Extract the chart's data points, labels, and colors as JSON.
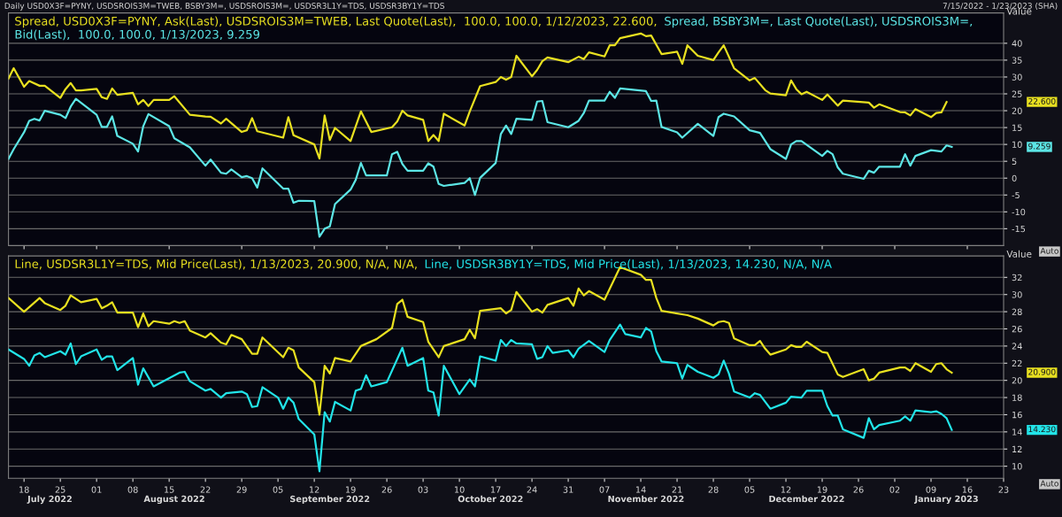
{
  "chart_data": [
    {
      "type": "line",
      "ylabel": "Value",
      "legend": "top left",
      "grid": "y",
      "tick_labels": "y",
      "xlim": [
        "2022-07-15",
        "2023-01-23"
      ],
      "xticks": [
        {
          "value": "2022-07-18",
          "label": null
        },
        {
          "value": "2022-08-01",
          "label": null
        },
        {
          "value": "2022-08-15",
          "label": null
        },
        {
          "value": "2022-08-29",
          "label": null
        },
        {
          "value": "2022-09-12",
          "label": null
        },
        {
          "value": "2022-09-26",
          "label": null
        },
        {
          "value": "2022-10-10",
          "label": null
        },
        {
          "value": "2022-10-24",
          "label": null
        },
        {
          "value": "2022-11-07",
          "label": null
        },
        {
          "value": "2022-11-21",
          "label": null
        },
        {
          "value": "2022-12-05",
          "label": null
        },
        {
          "value": "2022-12-19",
          "label": null
        },
        {
          "value": "2023-01-02",
          "label": null
        },
        {
          "value": "2023-01-16",
          "label": null
        }
      ],
      "ylim": [
        -20,
        49
      ],
      "yticks": [
        -15,
        -10,
        -5,
        0,
        5,
        10,
        15,
        20,
        25,
        30,
        35,
        40
      ],
      "annotations": [
        "Daily USD0X3F=PYNY, USDSROIS3M=TWEB, BSBY3M=, USDSROIS3M=, USDSR3L1Y=TDS, USDSR3BY1Y=TDS",
        "7/15/2022 - 1/23/2023 (SHA)",
        "Auto",
        "22.600",
        "9.259"
      ],
      "series": [
        {
          "name": "Spread, USD0X3F=PYNY, Ask(Last), USDSROIS3M=TWEB, Last Quote(Last),  100.0, 100.0, 1/12/2023, 22.600,",
          "color": "#e8e020",
          "x": [
            "2022-07-15",
            "2022-07-16",
            "2022-07-18",
            "2022-07-19",
            "2022-07-21",
            "2022-07-22",
            "2022-07-25",
            "2022-07-26",
            "2022-07-27",
            "2022-07-28",
            "2022-07-29",
            "2022-08-01",
            "2022-08-02",
            "2022-08-03",
            "2022-08-04",
            "2022-08-05",
            "2022-08-08",
            "2022-08-09",
            "2022-08-10",
            "2022-08-11",
            "2022-08-12",
            "2022-08-15",
            "2022-08-16",
            "2022-08-19",
            "2022-08-22",
            "2022-08-23",
            "2022-08-25",
            "2022-08-26",
            "2022-08-29",
            "2022-08-30",
            "2022-08-31",
            "2022-09-01",
            "2022-09-06",
            "2022-09-07",
            "2022-09-08",
            "2022-09-12",
            "2022-09-13",
            "2022-09-14",
            "2022-09-15",
            "2022-09-16",
            "2022-09-19",
            "2022-09-21",
            "2022-09-23",
            "2022-09-27",
            "2022-09-28",
            "2022-09-29",
            "2022-09-30",
            "2022-10-03",
            "2022-10-04",
            "2022-10-05",
            "2022-10-06",
            "2022-10-07",
            "2022-10-11",
            "2022-10-12",
            "2022-10-14",
            "2022-10-17",
            "2022-10-18",
            "2022-10-19",
            "2022-10-20",
            "2022-10-21",
            "2022-10-24",
            "2022-10-25",
            "2022-10-26",
            "2022-10-27",
            "2022-10-31",
            "2022-11-02",
            "2022-11-03",
            "2022-11-04",
            "2022-11-07",
            "2022-11-08",
            "2022-11-09",
            "2022-11-10",
            "2022-11-14",
            "2022-11-15",
            "2022-11-16",
            "2022-11-18",
            "2022-11-21",
            "2022-11-22",
            "2022-11-23",
            "2022-11-25",
            "2022-11-28",
            "2022-11-29",
            "2022-11-30",
            "2022-12-02",
            "2022-12-05",
            "2022-12-06",
            "2022-12-08",
            "2022-12-09",
            "2022-12-12",
            "2022-12-13",
            "2022-12-14",
            "2022-12-15",
            "2022-12-16",
            "2022-12-19",
            "2022-12-20",
            "2022-12-22",
            "2022-12-23",
            "2022-12-28",
            "2022-12-29",
            "2022-12-30",
            "2023-01-03",
            "2023-01-04",
            "2023-01-05",
            "2023-01-06",
            "2023-01-09",
            "2023-01-10",
            "2023-01-11",
            "2023-01-12"
          ],
          "values": [
            29.5,
            32.6,
            27.1,
            28.8,
            27.4,
            27.4,
            23.8,
            26.4,
            28.2,
            26.0,
            26.0,
            26.5,
            24.0,
            23.5,
            26.6,
            24.7,
            25.3,
            21.9,
            23.2,
            21.4,
            23.2,
            23.2,
            24.3,
            18.8,
            18.3,
            18.2,
            16.2,
            17.6,
            13.7,
            14.2,
            17.8,
            13.9,
            12.0,
            18.1,
            12.7,
            10.0,
            5.8,
            18.6,
            11.3,
            14.9,
            11.0,
            19.8,
            13.7,
            15.1,
            16.8,
            20.0,
            18.6,
            17.3,
            11.0,
            12.8,
            11.0,
            19.1,
            15.6,
            19.8,
            27.3,
            28.5,
            30.0,
            29.2,
            30.0,
            36.3,
            30.2,
            32.1,
            34.7,
            35.8,
            34.4,
            36.0,
            35.3,
            37.3,
            36.1,
            39.4,
            39.4,
            41.5,
            42.9,
            42.1,
            42.3,
            36.8,
            37.5,
            33.9,
            39.4,
            36.3,
            35.0,
            37.3,
            39.4,
            32.6,
            29.0,
            29.7,
            26.1,
            25.1,
            24.6,
            29.0,
            26.4,
            24.9,
            25.6,
            23.2,
            24.8,
            21.5,
            23.0,
            22.4,
            20.9,
            21.9,
            19.6,
            19.5,
            18.6,
            20.5,
            18.1,
            19.3,
            19.5,
            22.6
          ]
        },
        {
          "name": "Spread, BSBY3M=, Last Quote(Last), USDSROIS3M=, Bid(Last),  100.0, 100.0, 1/13/2023, 9.259",
          "color": "#5ce6e6",
          "x": [
            "2022-07-15",
            "2022-07-16",
            "2022-07-18",
            "2022-07-19",
            "2022-07-20",
            "2022-07-21",
            "2022-07-22",
            "2022-07-25",
            "2022-07-26",
            "2022-07-27",
            "2022-07-28",
            "2022-08-01",
            "2022-08-02",
            "2022-08-03",
            "2022-08-04",
            "2022-08-05",
            "2022-08-08",
            "2022-08-09",
            "2022-08-10",
            "2022-08-11",
            "2022-08-15",
            "2022-08-16",
            "2022-08-19",
            "2022-08-22",
            "2022-08-23",
            "2022-08-25",
            "2022-08-26",
            "2022-08-27",
            "2022-08-29",
            "2022-08-30",
            "2022-08-31",
            "2022-09-01",
            "2022-09-02",
            "2022-09-06",
            "2022-09-07",
            "2022-09-08",
            "2022-09-09",
            "2022-09-12",
            "2022-09-13",
            "2022-09-14",
            "2022-09-15",
            "2022-09-16",
            "2022-09-19",
            "2022-09-20",
            "2022-09-21",
            "2022-09-22",
            "2022-09-26",
            "2022-09-27",
            "2022-09-28",
            "2022-09-29",
            "2022-09-30",
            "2022-10-03",
            "2022-10-04",
            "2022-10-05",
            "2022-10-06",
            "2022-10-07",
            "2022-10-11",
            "2022-10-12",
            "2022-10-13",
            "2022-10-14",
            "2022-10-17",
            "2022-10-18",
            "2022-10-19",
            "2022-10-20",
            "2022-10-21",
            "2022-10-24",
            "2022-10-25",
            "2022-10-26",
            "2022-10-27",
            "2022-10-31",
            "2022-11-02",
            "2022-11-03",
            "2022-11-04",
            "2022-11-07",
            "2022-11-08",
            "2022-11-09",
            "2022-11-10",
            "2022-11-15",
            "2022-11-16",
            "2022-11-17",
            "2022-11-18",
            "2022-11-21",
            "2022-11-22",
            "2022-11-25",
            "2022-11-28",
            "2022-11-29",
            "2022-11-30",
            "2022-12-02",
            "2022-12-05",
            "2022-12-07",
            "2022-12-09",
            "2022-12-12",
            "2022-12-13",
            "2022-12-14",
            "2022-12-15",
            "2022-12-19",
            "2022-12-20",
            "2022-12-21",
            "2022-12-22",
            "2022-12-23",
            "2022-12-27",
            "2022-12-28",
            "2022-12-29",
            "2022-12-30",
            "2023-01-03",
            "2023-01-04",
            "2023-01-05",
            "2023-01-06",
            "2023-01-09",
            "2023-01-10",
            "2023-01-11",
            "2023-01-12",
            "2023-01-13"
          ],
          "values": [
            5.7,
            8.6,
            13.6,
            17.0,
            17.6,
            17.1,
            20.0,
            18.8,
            17.8,
            21.2,
            23.5,
            18.8,
            15.2,
            15.2,
            18.3,
            12.5,
            10.2,
            7.9,
            15.4,
            19.0,
            15.4,
            11.8,
            9.1,
            3.7,
            5.5,
            1.6,
            1.3,
            2.6,
            0.3,
            0.6,
            0.0,
            -2.8,
            2.9,
            -3.1,
            -3.1,
            -7.3,
            -6.7,
            -6.8,
            -17.4,
            -15.0,
            -14.3,
            -7.7,
            -3.4,
            -0.5,
            4.5,
            0.8,
            0.8,
            7.1,
            7.8,
            4.2,
            2.2,
            2.2,
            4.4,
            3.4,
            -1.7,
            -2.3,
            -1.4,
            0.0,
            -5.0,
            0.1,
            4.5,
            13.1,
            15.6,
            13.1,
            17.6,
            17.3,
            22.7,
            22.9,
            16.6,
            15.1,
            17.0,
            19.3,
            23.0,
            23.0,
            25.6,
            23.8,
            26.6,
            25.8,
            22.9,
            23.0,
            15.2,
            13.6,
            12.0,
            16.1,
            12.5,
            18.1,
            19.1,
            18.3,
            14.2,
            13.4,
            8.6,
            5.7,
            10.0,
            11.0,
            11.0,
            6.6,
            8.1,
            7.1,
            3.2,
            1.3,
            -0.2,
            2.2,
            1.6,
            3.4,
            3.4,
            7.1,
            3.7,
            6.6,
            8.3,
            8.1,
            7.9,
            9.7,
            9.259
          ]
        }
      ]
    },
    {
      "type": "line",
      "ylabel": "Value",
      "legend": "top left",
      "grid": "y",
      "xlim": [
        "2022-07-15",
        "2023-01-23"
      ],
      "xticks": [
        {
          "value": "2022-07-18",
          "label": "18"
        },
        {
          "value": "2022-07-25",
          "label": "25"
        },
        {
          "value": "2022-08-01",
          "label": "01"
        },
        {
          "value": "2022-08-08",
          "label": "08"
        },
        {
          "value": "2022-08-15",
          "label": "15"
        },
        {
          "value": "2022-08-22",
          "label": "22"
        },
        {
          "value": "2022-08-29",
          "label": "29"
        },
        {
          "value": "2022-09-05",
          "label": "05"
        },
        {
          "value": "2022-09-12",
          "label": "12"
        },
        {
          "value": "2022-09-19",
          "label": "19"
        },
        {
          "value": "2022-09-26",
          "label": "26"
        },
        {
          "value": "2022-10-03",
          "label": "03"
        },
        {
          "value": "2022-10-10",
          "label": "10"
        },
        {
          "value": "2022-10-17",
          "label": "17"
        },
        {
          "value": "2022-10-24",
          "label": "24"
        },
        {
          "value": "2022-10-31",
          "label": "31"
        },
        {
          "value": "2022-11-07",
          "label": "07"
        },
        {
          "value": "2022-11-14",
          "label": "14"
        },
        {
          "value": "2022-11-21",
          "label": "21"
        },
        {
          "value": "2022-11-28",
          "label": "28"
        },
        {
          "value": "2022-12-05",
          "label": "05"
        },
        {
          "value": "2022-12-12",
          "label": "12"
        },
        {
          "value": "2022-12-19",
          "label": "19"
        },
        {
          "value": "2022-12-26",
          "label": "26"
        },
        {
          "value": "2023-01-02",
          "label": "02"
        },
        {
          "value": "2023-01-09",
          "label": "09"
        },
        {
          "value": "2023-01-16",
          "label": "16"
        },
        {
          "value": "2023-01-23",
          "label": "23"
        }
      ],
      "x2lim": [
        "2022-07-15",
        "2023-01-23"
      ],
      "x2ticks": [
        {
          "value": "2022-07-23",
          "label": "July 2022"
        },
        {
          "value": "2022-08-16",
          "label": "August 2022"
        },
        {
          "value": "2022-09-15",
          "label": "September 2022"
        },
        {
          "value": "2022-10-16",
          "label": "October 2022"
        },
        {
          "value": "2022-11-15",
          "label": "November 2022"
        },
        {
          "value": "2022-12-16",
          "label": "December 2022"
        },
        {
          "value": "2023-01-12",
          "label": "January 2023"
        }
      ],
      "ylim": [
        8.6,
        34.5
      ],
      "yticks": [
        10,
        12,
        14,
        16,
        18,
        20,
        22,
        24,
        26,
        28,
        30,
        32
      ],
      "annotations": [
        "Auto",
        "20.900",
        "14.230"
      ],
      "series": [
        {
          "name": "Line, USDSR3L1Y=TDS, Mid Price(Last), 1/13/2023, 20.900, N/A, N/A,",
          "color": "#e8e020",
          "x": [
            "2022-07-15",
            "2022-07-18",
            "2022-07-21",
            "2022-07-22",
            "2022-07-25",
            "2022-07-26",
            "2022-07-27",
            "2022-07-29",
            "2022-08-01",
            "2022-08-02",
            "2022-08-03",
            "2022-08-04",
            "2022-08-05",
            "2022-08-08",
            "2022-08-09",
            "2022-08-10",
            "2022-08-11",
            "2022-08-12",
            "2022-08-15",
            "2022-08-16",
            "2022-08-17",
            "2022-08-18",
            "2022-08-19",
            "2022-08-22",
            "2022-08-23",
            "2022-08-25",
            "2022-08-26",
            "2022-08-27",
            "2022-08-29",
            "2022-08-31",
            "2022-09-01",
            "2022-09-02",
            "2022-09-06",
            "2022-09-07",
            "2022-09-08",
            "2022-09-09",
            "2022-09-12",
            "2022-09-13",
            "2022-09-14",
            "2022-09-15",
            "2022-09-16",
            "2022-09-19",
            "2022-09-21",
            "2022-09-24",
            "2022-09-27",
            "2022-09-28",
            "2022-09-29",
            "2022-09-30",
            "2022-10-03",
            "2022-10-04",
            "2022-10-06",
            "2022-10-07",
            "2022-10-11",
            "2022-10-12",
            "2022-10-13",
            "2022-10-14",
            "2022-10-18",
            "2022-10-19",
            "2022-10-20",
            "2022-10-21",
            "2022-10-24",
            "2022-10-25",
            "2022-10-26",
            "2022-10-27",
            "2022-10-31",
            "2022-11-01",
            "2022-11-02",
            "2022-11-03",
            "2022-11-04",
            "2022-11-07",
            "2022-11-10",
            "2022-11-14",
            "2022-11-15",
            "2022-11-16",
            "2022-11-17",
            "2022-11-18",
            "2022-11-23",
            "2022-11-25",
            "2022-11-28",
            "2022-11-29",
            "2022-11-30",
            "2022-12-01",
            "2022-12-02",
            "2022-12-05",
            "2022-12-06",
            "2022-12-07",
            "2022-12-08",
            "2022-12-09",
            "2022-12-12",
            "2022-12-13",
            "2022-12-14",
            "2022-12-15",
            "2022-12-16",
            "2022-12-19",
            "2022-12-20",
            "2022-12-22",
            "2022-12-23",
            "2022-12-27",
            "2022-12-28",
            "2022-12-29",
            "2022-12-30",
            "2023-01-03",
            "2023-01-04",
            "2023-01-05",
            "2023-01-06",
            "2023-01-09",
            "2023-01-10",
            "2023-01-11",
            "2023-01-12",
            "2023-01-13"
          ],
          "values": [
            29.6,
            28.0,
            29.6,
            29.0,
            28.2,
            28.7,
            29.9,
            29.1,
            29.5,
            28.4,
            28.7,
            29.1,
            27.9,
            27.9,
            26.2,
            27.8,
            26.3,
            26.9,
            26.6,
            26.9,
            26.7,
            26.9,
            25.8,
            25.0,
            25.5,
            24.4,
            24.2,
            25.3,
            24.8,
            23.1,
            23.1,
            25.0,
            22.7,
            23.8,
            23.5,
            21.5,
            19.8,
            16.0,
            21.7,
            20.8,
            22.6,
            22.2,
            24.0,
            24.8,
            26.1,
            28.9,
            29.4,
            27.4,
            26.8,
            24.5,
            22.7,
            24.0,
            24.8,
            25.9,
            24.9,
            28.1,
            28.4,
            27.8,
            28.2,
            30.3,
            28.0,
            28.3,
            27.9,
            28.8,
            29.6,
            28.7,
            30.7,
            29.9,
            30.4,
            29.4,
            33.2,
            32.3,
            31.7,
            31.7,
            29.6,
            28.1,
            27.6,
            27.2,
            26.4,
            26.8,
            26.9,
            26.7,
            24.9,
            24.1,
            24.1,
            24.6,
            23.7,
            23.0,
            23.6,
            24.1,
            23.9,
            23.9,
            24.5,
            23.3,
            23.2,
            20.7,
            20.4,
            21.3,
            20.0,
            20.2,
            20.9,
            21.5,
            21.5,
            21.1,
            22.0,
            21.0,
            21.9,
            22.0,
            21.3,
            20.9
          ]
        },
        {
          "name": "Line, USDSR3BY1Y=TDS, Mid Price(Last), 1/13/2023, 14.230, N/A, N/A",
          "color": "#22e4e8",
          "x": [
            "2022-07-15",
            "2022-07-18",
            "2022-07-19",
            "2022-07-20",
            "2022-07-21",
            "2022-07-22",
            "2022-07-25",
            "2022-07-26",
            "2022-07-27",
            "2022-07-28",
            "2022-07-29",
            "2022-08-01",
            "2022-08-02",
            "2022-08-03",
            "2022-08-04",
            "2022-08-05",
            "2022-08-08",
            "2022-08-09",
            "2022-08-10",
            "2022-08-12",
            "2022-08-17",
            "2022-08-18",
            "2022-08-19",
            "2022-08-22",
            "2022-08-23",
            "2022-08-25",
            "2022-08-26",
            "2022-08-29",
            "2022-08-30",
            "2022-08-31",
            "2022-09-01",
            "2022-09-02",
            "2022-09-05",
            "2022-09-06",
            "2022-09-07",
            "2022-09-08",
            "2022-09-09",
            "2022-09-12",
            "2022-09-13",
            "2022-09-14",
            "2022-09-15",
            "2022-09-16",
            "2022-09-19",
            "2022-09-20",
            "2022-09-21",
            "2022-09-22",
            "2022-09-23",
            "2022-09-26",
            "2022-09-29",
            "2022-09-30",
            "2022-10-03",
            "2022-10-04",
            "2022-10-05",
            "2022-10-06",
            "2022-10-07",
            "2022-10-10",
            "2022-10-12",
            "2022-10-13",
            "2022-10-14",
            "2022-10-17",
            "2022-10-18",
            "2022-10-19",
            "2022-10-20",
            "2022-10-21",
            "2022-10-24",
            "2022-10-25",
            "2022-10-26",
            "2022-10-27",
            "2022-10-28",
            "2022-10-31",
            "2022-11-01",
            "2022-11-02",
            "2022-11-04",
            "2022-11-07",
            "2022-11-08",
            "2022-11-10",
            "2022-11-11",
            "2022-11-14",
            "2022-11-15",
            "2022-11-16",
            "2022-11-17",
            "2022-11-18",
            "2022-11-21",
            "2022-11-22",
            "2022-11-23",
            "2022-11-25",
            "2022-11-28",
            "2022-11-29",
            "2022-11-30",
            "2022-12-01",
            "2022-12-02",
            "2022-12-05",
            "2022-12-06",
            "2022-12-07",
            "2022-12-09",
            "2022-12-12",
            "2022-12-13",
            "2022-12-15",
            "2022-12-16",
            "2022-12-19",
            "2022-12-20",
            "2022-12-21",
            "2022-12-22",
            "2022-12-23",
            "2022-12-27",
            "2022-12-28",
            "2022-12-29",
            "2022-12-30",
            "2023-01-03",
            "2023-01-04",
            "2023-01-05",
            "2023-01-06",
            "2023-01-09",
            "2023-01-10",
            "2023-01-11",
            "2023-01-12",
            "2023-01-13"
          ],
          "values": [
            23.6,
            22.5,
            21.7,
            22.9,
            23.2,
            22.7,
            23.4,
            23.0,
            24.3,
            21.9,
            22.8,
            23.6,
            22.4,
            22.8,
            22.8,
            21.2,
            22.6,
            19.5,
            21.4,
            19.3,
            20.9,
            21.0,
            19.9,
            18.8,
            19.0,
            18.0,
            18.5,
            18.7,
            18.4,
            16.9,
            17.0,
            19.2,
            18.0,
            16.7,
            18.0,
            17.4,
            15.5,
            13.7,
            9.4,
            16.3,
            15.2,
            17.5,
            16.5,
            18.8,
            19.0,
            20.6,
            19.3,
            19.8,
            23.8,
            21.7,
            22.6,
            18.8,
            18.6,
            15.9,
            21.7,
            18.4,
            20.1,
            19.3,
            22.8,
            22.3,
            24.7,
            24.0,
            24.7,
            24.3,
            24.2,
            22.5,
            22.7,
            24.0,
            23.2,
            23.5,
            22.7,
            23.7,
            24.6,
            23.3,
            24.7,
            26.5,
            25.4,
            25.0,
            26.1,
            25.7,
            23.4,
            22.2,
            22.0,
            20.2,
            21.8,
            21.0,
            20.3,
            20.7,
            22.3,
            20.8,
            18.7,
            18.0,
            18.5,
            18.3,
            16.7,
            17.4,
            18.1,
            18.0,
            18.8,
            18.8,
            17.0,
            15.9,
            15.9,
            14.3,
            13.3,
            15.6,
            14.3,
            14.8,
            15.3,
            15.8,
            15.3,
            16.5,
            16.3,
            16.4,
            16.1,
            15.6,
            14.23
          ]
        }
      ]
    }
  ]
}
